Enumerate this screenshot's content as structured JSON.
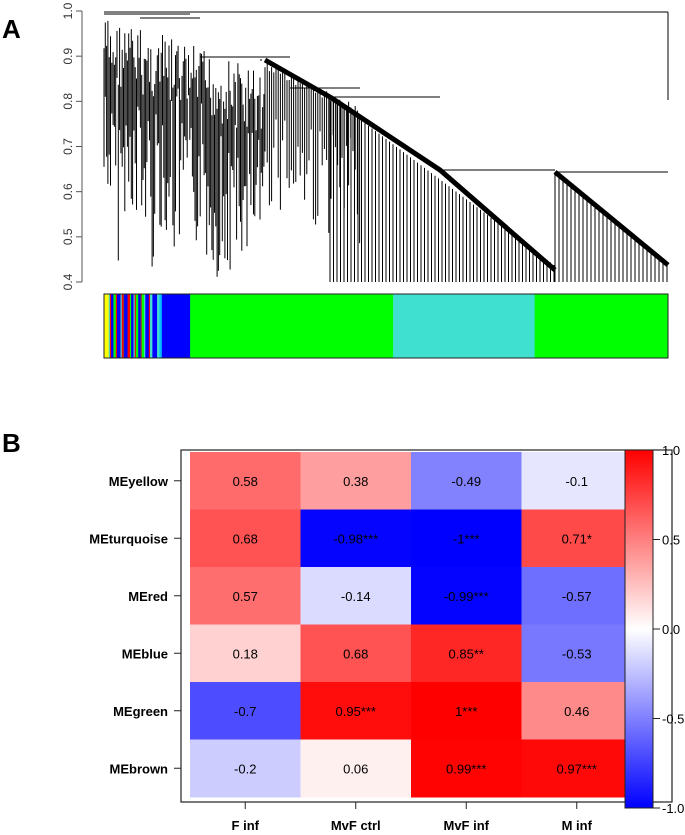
{
  "chart_data": [
    {
      "type": "dendrogram",
      "panel": "A",
      "ylim": [
        0.4,
        1.0
      ],
      "yticks": [
        "0.4",
        "0.5",
        "0.6",
        "0.7",
        "0.8",
        "0.9",
        "1.0"
      ],
      "module_color_bar": [
        {
          "color": "#ffff00",
          "width": 4
        },
        {
          "color": "#40e0d0",
          "width": 1
        },
        {
          "color": "#ff0000",
          "width": 1
        },
        {
          "color": "#0000ff",
          "width": 2
        },
        {
          "color": "#00ff00",
          "width": 2
        },
        {
          "color": "#ff0000",
          "width": 1
        },
        {
          "color": "#0000ff",
          "width": 3
        },
        {
          "color": "#40e0d0",
          "width": 1
        },
        {
          "color": "#ff0000",
          "width": 1
        },
        {
          "color": "#a52a2a",
          "width": 1
        },
        {
          "color": "#0000ff",
          "width": 3
        },
        {
          "color": "#ff0000",
          "width": 2
        },
        {
          "color": "#00ff00",
          "width": 1
        },
        {
          "color": "#0000ff",
          "width": 2
        },
        {
          "color": "#40e0d0",
          "width": 1
        },
        {
          "color": "#ff0000",
          "width": 1
        },
        {
          "color": "#00ff00",
          "width": 2
        },
        {
          "color": "#0000ff",
          "width": 2
        },
        {
          "color": "#a52a2a",
          "width": 1
        },
        {
          "color": "#00ff00",
          "width": 2
        },
        {
          "color": "#40e0d0",
          "width": 1
        },
        {
          "color": "#0000ff",
          "width": 3
        },
        {
          "color": "#ff0000",
          "width": 1
        },
        {
          "color": "#40e0d0",
          "width": 2
        },
        {
          "color": "#0000ff",
          "width": 4
        },
        {
          "color": "#40e0d0",
          "width": 2
        },
        {
          "color": "#00bfff",
          "width": 2
        },
        {
          "color": "#0000ff",
          "width": 24
        },
        {
          "color": "#00ff00",
          "width": 172
        },
        {
          "color": "#40e0d0",
          "width": 120
        },
        {
          "color": "#00ff00",
          "width": 113
        }
      ]
    },
    {
      "type": "heatmap",
      "panel": "B",
      "rows": [
        "MEyellow",
        "MEturquoise",
        "MEred",
        "MEblue",
        "MEgreen",
        "MEbrown"
      ],
      "columns": [
        "F inf",
        "MvF ctrl",
        "MvF inf",
        "M inf"
      ],
      "values": [
        [
          0.58,
          0.38,
          -0.49,
          -0.1
        ],
        [
          0.68,
          -0.98,
          -1,
          0.71
        ],
        [
          0.57,
          -0.14,
          -0.99,
          -0.57
        ],
        [
          0.18,
          0.68,
          0.85,
          -0.53
        ],
        [
          -0.7,
          0.95,
          1,
          0.46
        ],
        [
          -0.2,
          0.06,
          0.99,
          0.97
        ]
      ],
      "labels": [
        [
          "0.58",
          "0.38",
          "-0.49",
          "-0.1"
        ],
        [
          "0.68",
          "-0.98***",
          "-1***",
          "0.71*"
        ],
        [
          "0.57",
          "-0.14",
          "-0.99***",
          "-0.57"
        ],
        [
          "0.18",
          "0.68",
          "0.85**",
          "-0.53"
        ],
        [
          "-0.7",
          "0.95***",
          "1***",
          "0.46"
        ],
        [
          "-0.2",
          "0.06",
          "0.99***",
          "0.97***"
        ]
      ],
      "colorbar": {
        "range": [
          -1.0,
          1.0
        ],
        "ticks": [
          "1.0",
          "0.5",
          "0.0",
          "-0.5",
          "-1.0"
        ],
        "ticks_values": [
          1.0,
          0.5,
          0.0,
          -0.5,
          -1.0
        ],
        "low_color": "#0000ff",
        "mid_color": "#ffffff",
        "high_color": "#ff0000"
      }
    }
  ],
  "panels": {
    "a_label": "A",
    "b_label": "B"
  }
}
